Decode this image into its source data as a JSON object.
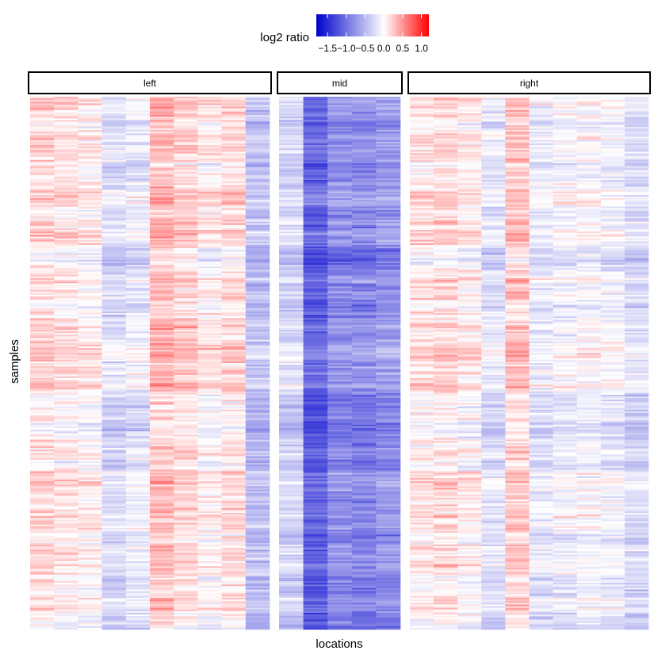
{
  "chart_data": {
    "type": "heatmap",
    "title": "",
    "xlabel": "locations",
    "ylabel": "samples",
    "legend": {
      "title": "log2 ratio",
      "placement": "top",
      "range": [
        -1.8,
        1.2
      ],
      "ticks": [
        -1.5,
        -1.0,
        -0.5,
        0.0,
        0.5,
        1.0
      ],
      "tick_labels": [
        "−1.5",
        "−1.0",
        "−0.5",
        "0.0",
        "0.5",
        "1.0"
      ],
      "colors": {
        "low": "#0000cc",
        "mid": "#ffffff",
        "high": "#ff0000"
      }
    },
    "facets": [
      {
        "name": "left",
        "n_columns": 10,
        "column_mean_log2": [
          0.15,
          0.1,
          0.05,
          -0.25,
          -0.15,
          0.3,
          0.2,
          0.05,
          0.15,
          -0.45
        ]
      },
      {
        "name": "mid",
        "n_columns": 5,
        "column_mean_log2": [
          -0.3,
          -1.1,
          -0.8,
          -0.85,
          -0.75
        ]
      },
      {
        "name": "right",
        "n_columns": 10,
        "column_mean_log2": [
          0.1,
          0.15,
          0.05,
          -0.2,
          0.25,
          -0.15,
          -0.1,
          -0.05,
          -0.1,
          -0.25
        ]
      }
    ],
    "n_samples": 320,
    "grid": false
  }
}
